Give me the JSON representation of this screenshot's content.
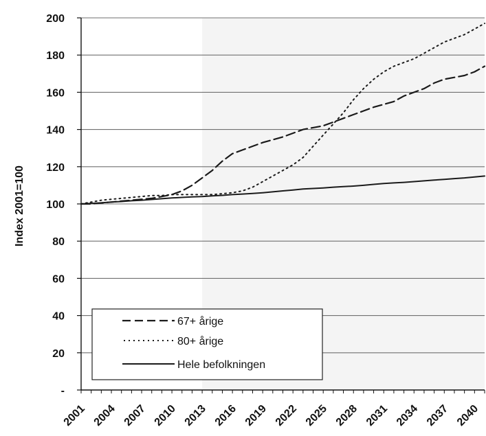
{
  "chart_data": {
    "type": "line",
    "title": "",
    "xlabel": "",
    "ylabel": "Index 2001=100",
    "xlim": [
      2001,
      2041
    ],
    "ylim": [
      0,
      200
    ],
    "y_ticks": [
      0,
      20,
      40,
      60,
      80,
      100,
      120,
      140,
      160,
      180,
      200
    ],
    "y_tick_labels": [
      "-",
      "20",
      "40",
      "60",
      "80",
      "100",
      "120",
      "140",
      "160",
      "180",
      "200"
    ],
    "x_tick_labels": [
      "2001",
      "2004",
      "2007",
      "2010",
      "2013",
      "2016",
      "2019",
      "2022",
      "2025",
      "2028",
      "2031",
      "2034",
      "2037",
      "2040"
    ],
    "grid": "horizontal",
    "projection_shading_from": 2013,
    "legend_position": "bottom-left",
    "series": [
      {
        "name": "67+ årige",
        "style": "dashed",
        "x": [
          2001,
          2002,
          2003,
          2004,
          2005,
          2006,
          2007,
          2008,
          2009,
          2010,
          2011,
          2012,
          2013,
          2014,
          2015,
          2016,
          2017,
          2018,
          2019,
          2020,
          2021,
          2022,
          2023,
          2024,
          2025,
          2026,
          2027,
          2028,
          2029,
          2030,
          2031,
          2032,
          2033,
          2034,
          2035,
          2036,
          2037,
          2038,
          2039,
          2040,
          2041
        ],
        "values": [
          100,
          100,
          100.5,
          101,
          101.5,
          102,
          102.5,
          103,
          104,
          105,
          107,
          110,
          114,
          118,
          123,
          127,
          129,
          131,
          133,
          134.5,
          136,
          138,
          140,
          141,
          142,
          144,
          146,
          148,
          150,
          152,
          153.5,
          155,
          158,
          160,
          162,
          165,
          167,
          168,
          169,
          171,
          174
        ]
      },
      {
        "name": "80+ årige",
        "style": "dotted",
        "x": [
          2001,
          2002,
          2003,
          2004,
          2005,
          2006,
          2007,
          2008,
          2009,
          2010,
          2011,
          2012,
          2013,
          2014,
          2015,
          2016,
          2017,
          2018,
          2019,
          2020,
          2021,
          2022,
          2023,
          2024,
          2025,
          2026,
          2027,
          2028,
          2029,
          2030,
          2031,
          2032,
          2033,
          2034,
          2035,
          2036,
          2037,
          2038,
          2039,
          2040,
          2041
        ],
        "values": [
          100,
          101,
          102,
          102.5,
          103,
          103.5,
          104,
          104.5,
          104.5,
          105,
          105,
          105,
          105,
          105,
          105.5,
          106,
          107,
          109,
          112,
          115,
          118,
          121,
          125,
          131,
          137,
          143,
          149,
          156,
          162,
          167,
          171,
          174,
          176,
          178,
          181,
          184,
          187,
          189,
          191,
          194,
          197
        ]
      },
      {
        "name": "Hele befolkningen",
        "style": "solid",
        "x": [
          2001,
          2002,
          2003,
          2004,
          2005,
          2006,
          2007,
          2008,
          2009,
          2010,
          2011,
          2012,
          2013,
          2014,
          2015,
          2016,
          2017,
          2018,
          2019,
          2020,
          2021,
          2022,
          2023,
          2024,
          2025,
          2026,
          2027,
          2028,
          2029,
          2030,
          2031,
          2032,
          2033,
          2034,
          2035,
          2036,
          2037,
          2038,
          2039,
          2040,
          2041
        ],
        "values": [
          100,
          100.3,
          100.6,
          101,
          101.3,
          101.7,
          102,
          102.4,
          102.8,
          103.2,
          103.5,
          103.8,
          104,
          104.3,
          104.6,
          105,
          105.3,
          105.6,
          106,
          106.5,
          107,
          107.5,
          108,
          108.3,
          108.6,
          109,
          109.3,
          109.6,
          110,
          110.5,
          111,
          111.3,
          111.6,
          112,
          112.4,
          112.8,
          113.2,
          113.6,
          114,
          114.5,
          115
        ]
      }
    ]
  },
  "colors": {
    "grid": "#6f6f6f",
    "line": "#1a1a1a",
    "shade": "#f4f4f4"
  }
}
